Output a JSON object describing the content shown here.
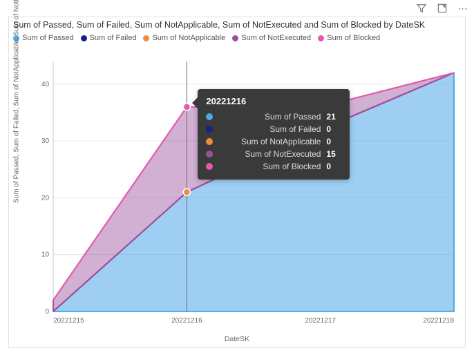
{
  "toolbar": {
    "filter_icon": "filter",
    "focus_icon": "focus-mode",
    "more_icon": "more-options"
  },
  "chart": {
    "type": "area",
    "title": "Sum of Passed, Sum of Failed, Sum of NotApplicable, Sum of NotExecuted and Sum of Blocked by DateSK",
    "background_color": "#ffffff",
    "border_color": "#e0e0e0",
    "grid_color": "#e6e6e6",
    "title_fontsize": 12.5,
    "legend_fontsize": 11,
    "tick_fontsize": 10,
    "xlabel": "DateSK",
    "ylabel": "Sum of Passed, Sum of Failed, Sum of NotApplicable, Sum of NotExec…",
    "xaxis": {
      "categories": [
        "20221215",
        "20221216",
        "20221217",
        "20221218"
      ]
    },
    "yaxis": {
      "ylim": [
        0,
        44
      ],
      "ticks": [
        0,
        10,
        20,
        30,
        40
      ]
    },
    "series": [
      {
        "name": "Sum of Passed",
        "color": "#4fa8e8",
        "values": [
          0,
          21,
          32,
          42
        ],
        "fill_opacity": 0.55
      },
      {
        "name": "Sum of Failed",
        "color": "#1a1f8a",
        "values": [
          0,
          0,
          0,
          0
        ],
        "fill_opacity": 0.55
      },
      {
        "name": "Sum of NotApplicable",
        "color": "#f08a3c",
        "values": [
          0,
          0,
          0,
          0
        ],
        "fill_opacity": 0.55
      },
      {
        "name": "Sum of NotExecuted",
        "color": "#9b4fa0",
        "values": [
          2,
          15,
          4,
          0
        ],
        "fill_opacity": 0.45
      },
      {
        "name": "Sum of Blocked",
        "color": "#e858b0",
        "values": [
          0,
          0,
          0,
          0
        ],
        "fill_opacity": 0.55
      }
    ],
    "hover_line_color": "#666666",
    "marker_radius": 5,
    "stroke_width": 2
  },
  "tooltip": {
    "x_index": 1,
    "title": "20221216",
    "rows": [
      {
        "color": "#4fa8e8",
        "label": "Sum of Passed",
        "value": "21"
      },
      {
        "color": "#1a1f8a",
        "label": "Sum of Failed",
        "value": "0"
      },
      {
        "color": "#f08a3c",
        "label": "Sum of NotApplicable",
        "value": "0"
      },
      {
        "color": "#9b4fa0",
        "label": "Sum of NotExecuted",
        "value": "15"
      },
      {
        "color": "#e858b0",
        "label": "Sum of Blocked",
        "value": "0"
      }
    ],
    "background_color": "#3a3a3a",
    "text_color": "#e6e6e6"
  }
}
